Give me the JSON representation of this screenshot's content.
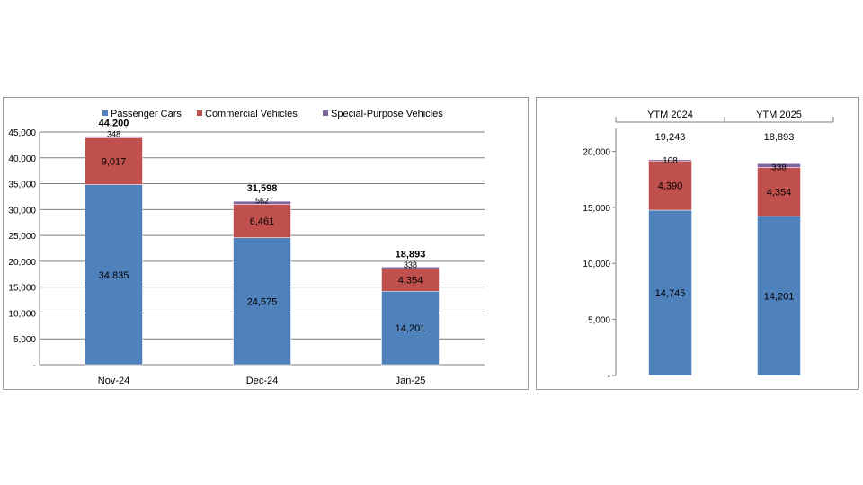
{
  "colors": {
    "passenger": "#4F81BD",
    "commercial": "#C0504D",
    "special": "#8064A2",
    "grid": "#7f7f7f"
  },
  "chart_data": [
    {
      "type": "bar",
      "stacked": true,
      "categories": [
        "Nov-24",
        "Dec-24",
        "Jan-25"
      ],
      "series": [
        {
          "name": "Passenger Cars",
          "values": [
            34835,
            24575,
            14201
          ]
        },
        {
          "name": "Commercial Vehicles",
          "values": [
            9017,
            6461,
            4354
          ]
        },
        {
          "name": "Special-Purpose Vehicles",
          "values": [
            348,
            562,
            338
          ]
        }
      ],
      "totals": [
        44200,
        31598,
        18893
      ],
      "value_labels": [
        [
          "34,835",
          "24,575",
          "14,201"
        ],
        [
          "9,017",
          "6,461",
          "4,354"
        ],
        [
          "348",
          "562",
          "338"
        ]
      ],
      "total_labels": [
        "44,200",
        "31,598",
        "18,893"
      ],
      "y_ticks": [
        0,
        5000,
        10000,
        15000,
        20000,
        25000,
        30000,
        35000,
        40000,
        45000
      ],
      "y_tick_labels": [
        "-",
        "5,000",
        "10,000",
        "15,000",
        "20,000",
        "25,000",
        "30,000",
        "35,000",
        "40,000",
        "45,000"
      ],
      "ylim": [
        0,
        45000
      ],
      "grid": true,
      "legend": "top"
    },
    {
      "type": "bar",
      "stacked": true,
      "categories": [
        "YTM 2024",
        "YTM 2025"
      ],
      "series": [
        {
          "name": "Passenger Cars",
          "values": [
            14745,
            14201
          ]
        },
        {
          "name": "Commercial Vehicles",
          "values": [
            4390,
            4354
          ]
        },
        {
          "name": "Special-Purpose Vehicles",
          "values": [
            108,
            338
          ]
        }
      ],
      "totals": [
        19243,
        18893
      ],
      "value_labels": [
        [
          "14,745",
          "14,201"
        ],
        [
          "4,390",
          "4,354"
        ],
        [
          "108",
          "338"
        ]
      ],
      "total_labels": [
        "19,243",
        "18,893"
      ],
      "y_ticks": [
        0,
        5000,
        10000,
        15000,
        20000
      ],
      "y_tick_labels": [
        "-",
        "5,000",
        "10,000",
        "15,000",
        "20,000"
      ],
      "ylim": [
        0,
        20000
      ],
      "grid": false,
      "category_axis": "top"
    }
  ]
}
